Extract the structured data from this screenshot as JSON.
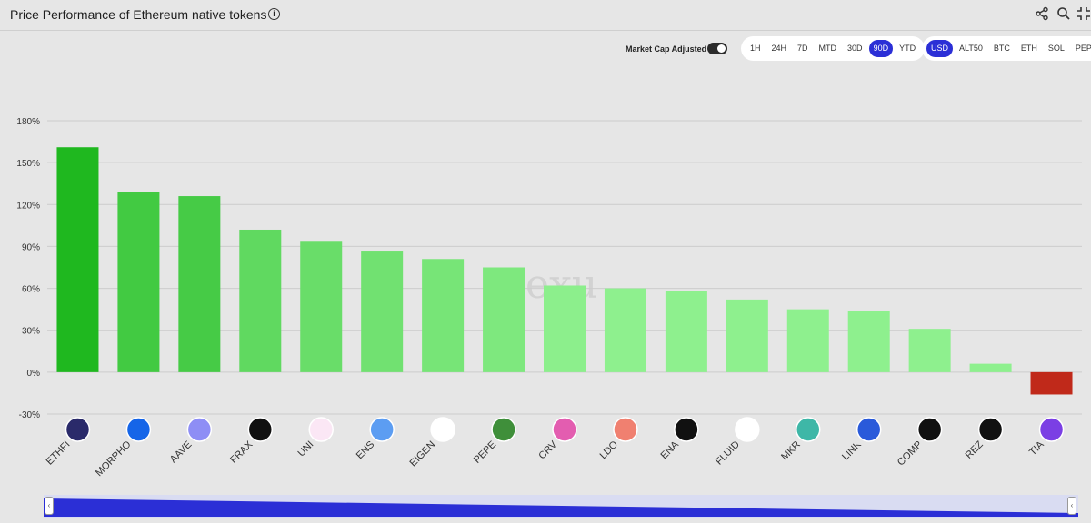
{
  "header": {
    "title": "Price Performance of Ethereum native tokens",
    "icons": [
      "share-icon",
      "search-icon",
      "collapse-icon"
    ]
  },
  "controls": {
    "market_cap_label": "Market Cap Adjusted",
    "market_cap_on": true,
    "periods": [
      "1H",
      "24H",
      "7D",
      "MTD",
      "30D",
      "90D",
      "YTD"
    ],
    "active_period": "90D",
    "currencies": [
      "USD",
      "ALT50",
      "BTC",
      "ETH",
      "SOL",
      "PEPE"
    ],
    "active_currency": "USD"
  },
  "watermark": "Dexu",
  "colors": {
    "positive_dark": "#1fb81f",
    "positive_light": "#8ef08e",
    "negative": "#c0291a",
    "accent": "#2b2fd6"
  },
  "chart_data": {
    "type": "bar",
    "categories": [
      "ETHFI",
      "MORPHO",
      "AAVE",
      "FRAX",
      "UNI",
      "ENS",
      "EIGEN",
      "PEPE",
      "CRV",
      "LDO",
      "ENA",
      "FLUID",
      "MKR",
      "LINK",
      "COMP",
      "REZ",
      "TIA"
    ],
    "values": [
      161,
      129,
      126,
      102,
      94,
      87,
      81,
      75,
      62,
      60,
      58,
      52,
      45,
      44,
      31,
      6,
      -16
    ],
    "yticks": [
      "-30%",
      "0%",
      "30%",
      "60%",
      "90%",
      "120%",
      "150%",
      "180%"
    ],
    "ylim": [
      -30,
      180
    ],
    "grid": true,
    "legend": "none"
  }
}
